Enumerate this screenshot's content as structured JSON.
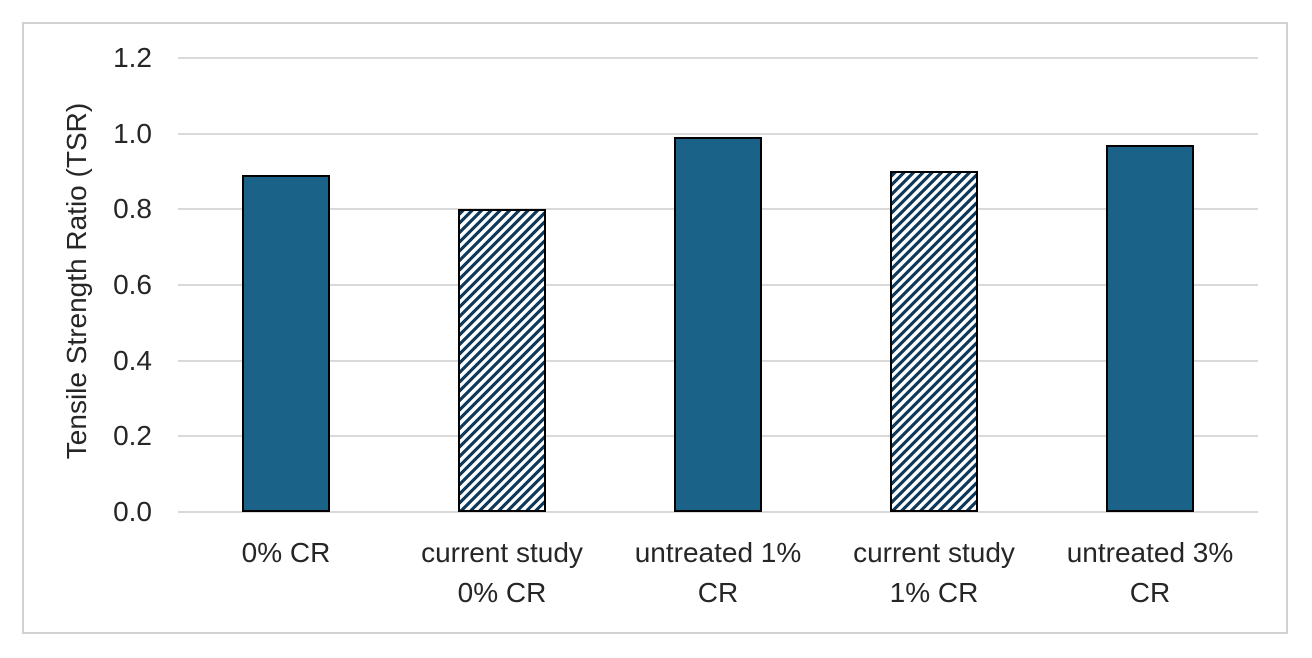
{
  "chart_data": {
    "type": "bar",
    "title": "",
    "xlabel": "",
    "ylabel": "Tensile Strength Ratio (TSR)",
    "ylim": [
      0,
      1.2
    ],
    "ytick_values": [
      0,
      0.2,
      0.4,
      0.6,
      0.8,
      1.0,
      1.2
    ],
    "ytick_labels": [
      "0.0",
      "0.2",
      "0.4",
      "0.6",
      "0.8",
      "1.0",
      "1.2"
    ],
    "grid": "horizontal",
    "legend_position": "none",
    "categories": [
      "0% CR",
      "current study 0% CR",
      "untreated 1% CR",
      "current study 1% CR",
      "untreated 3% CR"
    ],
    "categories_wrapped": [
      [
        "0% CR"
      ],
      [
        "current study",
        "0% CR"
      ],
      [
        "untreated 1%",
        "CR"
      ],
      [
        "current study",
        "1% CR"
      ],
      [
        "untreated 3%",
        "CR"
      ]
    ],
    "values": [
      0.89,
      0.8,
      0.99,
      0.9,
      0.97
    ],
    "bar_styles": [
      "solid",
      "hatched",
      "solid",
      "hatched",
      "solid"
    ],
    "hatch_direction": "diagonal-up",
    "colors": {
      "solid_fill": "#1A6287",
      "hatch_stripe": "#0F3A5C",
      "bar_border": "#000000",
      "gridline": "#D9D9D9",
      "chart_border": "#D1D1D1",
      "text": "#262626",
      "background": "#FFFFFF"
    }
  }
}
